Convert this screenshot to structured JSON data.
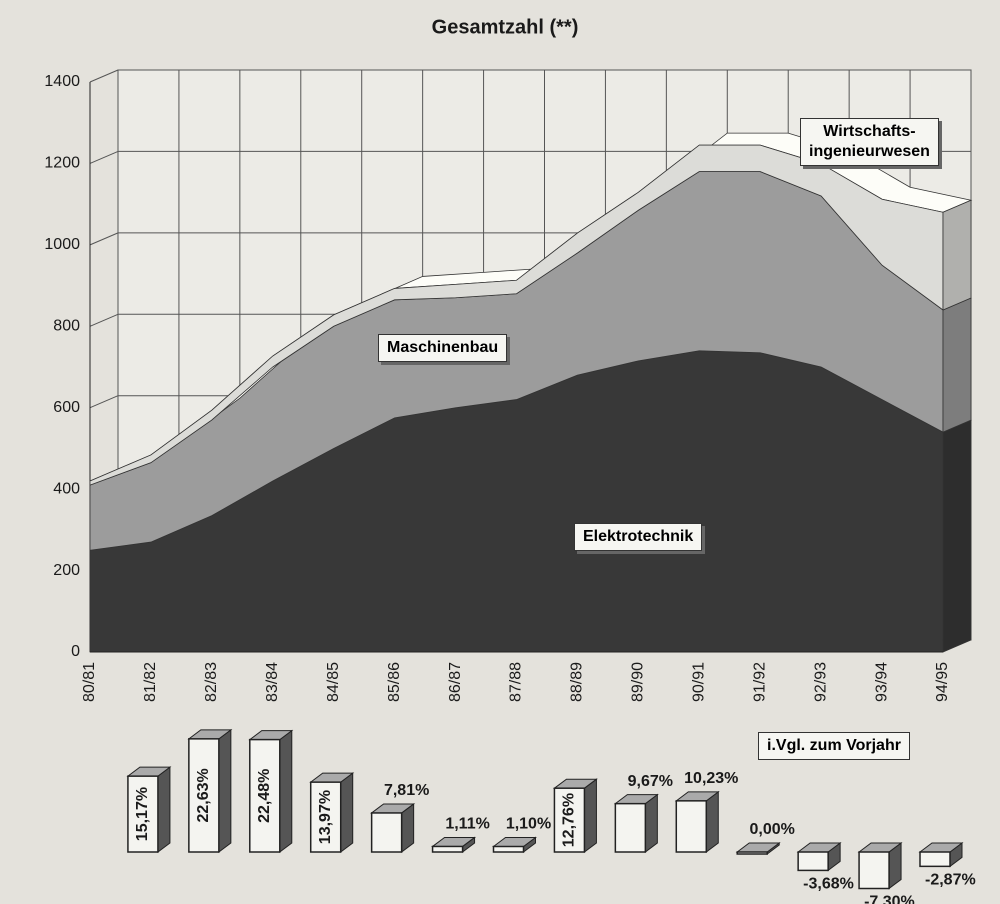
{
  "chart_data": [
    {
      "type": "area",
      "title": "Gesamtzahl (**)",
      "categories": [
        "80/81",
        "81/82",
        "82/83",
        "83/84",
        "84/85",
        "85/86",
        "86/87",
        "87/88",
        "88/89",
        "89/90",
        "90/91",
        "91/92",
        "92/93",
        "93/94",
        "94/95"
      ],
      "stacked": true,
      "series": [
        {
          "name": "Elektrotechnik",
          "color": "#383838",
          "values": [
            250,
            270,
            335,
            420,
            500,
            575,
            600,
            620,
            680,
            715,
            740,
            735,
            700,
            620,
            540
          ]
        },
        {
          "name": "Maschinenbau",
          "color": "#9c9c9c",
          "values": [
            160,
            195,
            235,
            280,
            300,
            290,
            270,
            260,
            300,
            370,
            440,
            445,
            420,
            330,
            300
          ]
        },
        {
          "name": "Wirtschafts-\ningenieurwesen",
          "color": "#dcdcd8",
          "values": [
            10,
            19,
            24,
            27,
            28,
            28,
            33,
            33,
            49,
            44,
            65,
            65,
            79,
            162,
            240
          ]
        }
      ],
      "ylim": [
        0,
        1400
      ],
      "yticks": [
        0,
        200,
        400,
        600,
        800,
        1000,
        1200,
        1400
      ],
      "grid": true
    },
    {
      "type": "bar",
      "title": "i.Vgl. zum Vorjahr",
      "values": [
        15.17,
        22.63,
        22.48,
        13.97,
        7.81,
        1.11,
        1.1,
        12.76,
        9.67,
        10.23,
        0.0,
        -3.68,
        -7.3,
        -2.87
      ],
      "value_labels": [
        "15,17%",
        "22,63%",
        "22,48%",
        "13,97%",
        "7,81%",
        "1,11%",
        "1,10%",
        "12,76%",
        "9,67%",
        "10,23%",
        "0,00%",
        "-3,68%",
        "-7,30%",
        "-2,87%"
      ],
      "color": "#f4f4f0"
    }
  ]
}
